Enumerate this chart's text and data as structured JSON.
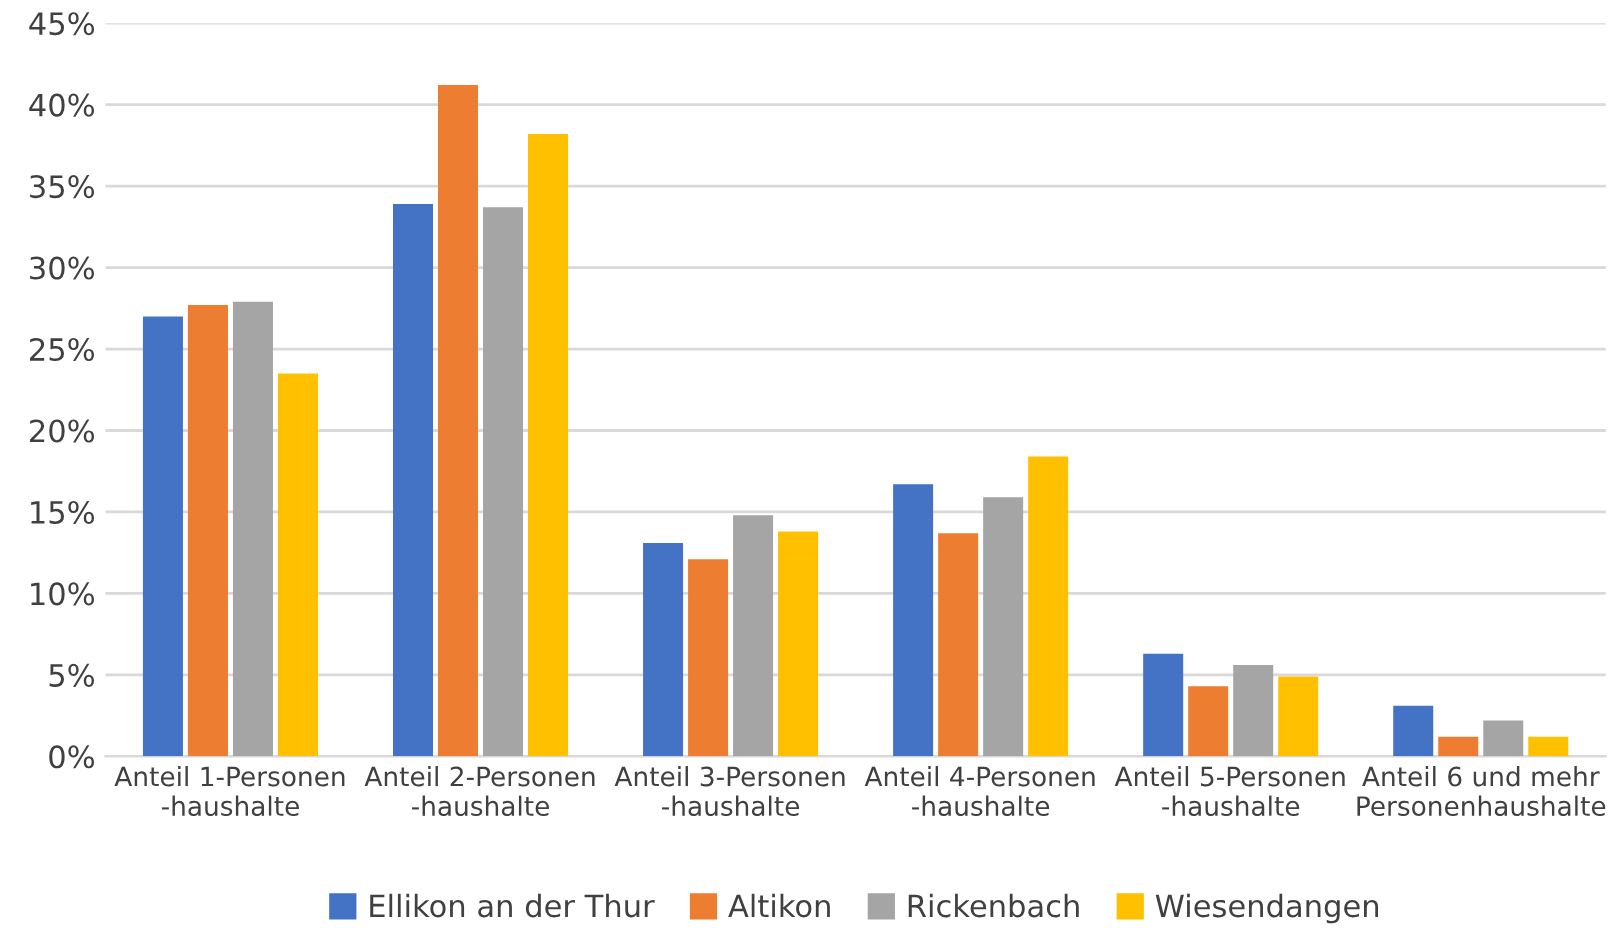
{
  "chart_data": {
    "type": "bar",
    "categories": [
      "Anteil 1-Personen\n-haushalte",
      "Anteil 2-Personen\n-haushalte",
      "Anteil 3-Personen\n-haushalte",
      "Anteil 4-Personen\n-haushalte",
      "Anteil 5-Personen\n-haushalte",
      "Anteil 6 und mehr\nPersonenhaushalte"
    ],
    "series": [
      {
        "name": "Ellikon an der Thur",
        "color": "#4472c4",
        "values": [
          27.0,
          33.9,
          13.1,
          16.7,
          6.3,
          3.1
        ]
      },
      {
        "name": "Altikon",
        "color": "#ed7d31",
        "values": [
          27.7,
          41.2,
          12.1,
          13.7,
          4.3,
          1.2
        ]
      },
      {
        "name": "Rickenbach",
        "color": "#a5a5a5",
        "values": [
          27.9,
          33.7,
          14.8,
          15.9,
          5.6,
          2.2
        ]
      },
      {
        "name": "Wiesendangen",
        "color": "#ffc000",
        "values": [
          23.5,
          38.2,
          13.8,
          18.4,
          4.9,
          1.2
        ]
      }
    ],
    "ylim": [
      0,
      45
    ],
    "yticks": [
      {
        "value": 0,
        "label": "0%"
      },
      {
        "value": 5,
        "label": "5%"
      },
      {
        "value": 10,
        "label": "10%"
      },
      {
        "value": 15,
        "label": "15%"
      },
      {
        "value": 20,
        "label": "20%"
      },
      {
        "value": 25,
        "label": "25%"
      },
      {
        "value": 30,
        "label": "30%"
      },
      {
        "value": 35,
        "label": "35%"
      },
      {
        "value": 40,
        "label": "40%"
      },
      {
        "value": 45,
        "label": "45%"
      }
    ],
    "grid": "y",
    "legend": "bottom"
  }
}
